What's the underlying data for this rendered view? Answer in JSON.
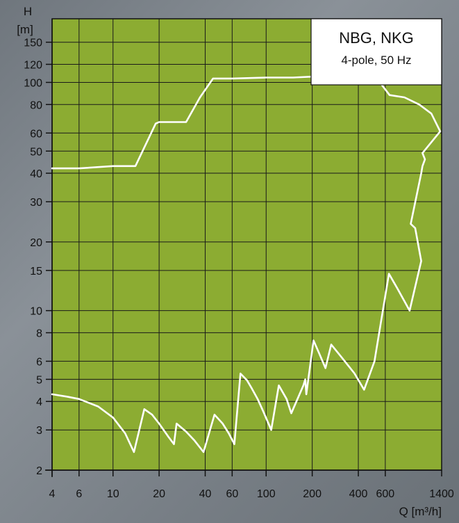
{
  "chart_data": {
    "type": "line",
    "title": "NBG, NKG",
    "subtitle": "4-pole, 50 Hz",
    "xlabel": "Q [m³/h]",
    "ylabel_symbol": "H",
    "ylabel_unit": "[m]",
    "xscale": "log",
    "yscale": "log",
    "xlim": [
      4,
      1400
    ],
    "ylim": [
      2,
      190
    ],
    "grid": true,
    "plot_background": "#8cac32",
    "line_color": "#ffffff",
    "x_ticks": [
      4,
      6,
      10,
      20,
      40,
      60,
      100,
      200,
      400,
      600,
      1400
    ],
    "y_ticks": [
      2,
      3,
      4,
      5,
      6,
      8,
      10,
      15,
      20,
      30,
      40,
      50,
      60,
      80,
      100,
      120,
      150
    ],
    "x_gridlines": [
      4,
      6,
      10,
      20,
      40,
      60,
      100,
      200,
      400,
      600,
      1400
    ],
    "y_gridlines": [
      2,
      3,
      4,
      5,
      6,
      8,
      10,
      15,
      20,
      30,
      40,
      50,
      60,
      80,
      100,
      120,
      150
    ],
    "series": [
      {
        "values": [
          [
            4,
            4.3
          ],
          [
            5,
            4.2
          ],
          [
            6,
            4.1
          ],
          [
            8,
            3.8
          ],
          [
            10,
            3.4
          ],
          [
            12,
            2.9
          ],
          [
            13.7,
            2.4
          ],
          [
            16,
            3.7
          ],
          [
            18,
            3.5
          ],
          [
            20,
            3.2
          ],
          [
            23,
            2.8
          ],
          [
            25,
            2.6
          ],
          [
            26,
            3.2
          ],
          [
            30,
            2.95
          ],
          [
            34,
            2.7
          ],
          [
            39,
            2.4
          ],
          [
            46,
            3.5
          ],
          [
            52,
            3.2
          ],
          [
            57,
            2.9
          ],
          [
            62,
            2.6
          ],
          [
            68,
            5.3
          ],
          [
            75,
            4.95
          ],
          [
            80,
            4.6
          ],
          [
            88,
            4.1
          ],
          [
            96,
            3.6
          ],
          [
            108,
            3.0
          ],
          [
            121,
            4.7
          ],
          [
            136,
            4.1
          ],
          [
            146,
            3.55
          ],
          [
            175,
            4.7
          ],
          [
            180,
            5.0
          ],
          [
            183,
            4.3
          ],
          [
            204,
            7.4
          ],
          [
            222,
            6.5
          ],
          [
            244,
            5.6
          ],
          [
            266,
            7.1
          ],
          [
            314,
            6.2
          ],
          [
            378,
            5.3
          ],
          [
            436,
            4.5
          ],
          [
            510,
            6.0
          ],
          [
            518,
            6.4
          ],
          [
            634,
            14.5
          ],
          [
            720,
            12.5
          ],
          [
            865,
            10.0
          ],
          [
            1030,
            16.5
          ],
          [
            940,
            23
          ],
          [
            880,
            24
          ],
          [
            1030,
            40
          ],
          [
            1050,
            43
          ],
          [
            1090,
            46
          ],
          [
            1050,
            49
          ],
          [
            1370,
            61
          ],
          [
            1200,
            73
          ],
          [
            1000,
            80
          ],
          [
            800,
            86
          ],
          [
            640,
            88
          ],
          [
            560,
            99
          ],
          [
            440,
            104
          ],
          [
            300,
            106
          ],
          [
            200,
            106
          ],
          [
            150,
            105
          ],
          [
            100,
            105
          ],
          [
            60,
            104
          ],
          [
            45,
            104
          ],
          [
            37,
            86
          ],
          [
            30,
            67
          ],
          [
            26,
            67
          ],
          [
            20,
            67
          ],
          [
            19,
            66
          ],
          [
            14,
            43
          ],
          [
            10,
            43
          ],
          [
            6,
            42
          ],
          [
            4,
            42
          ]
        ]
      }
    ]
  }
}
